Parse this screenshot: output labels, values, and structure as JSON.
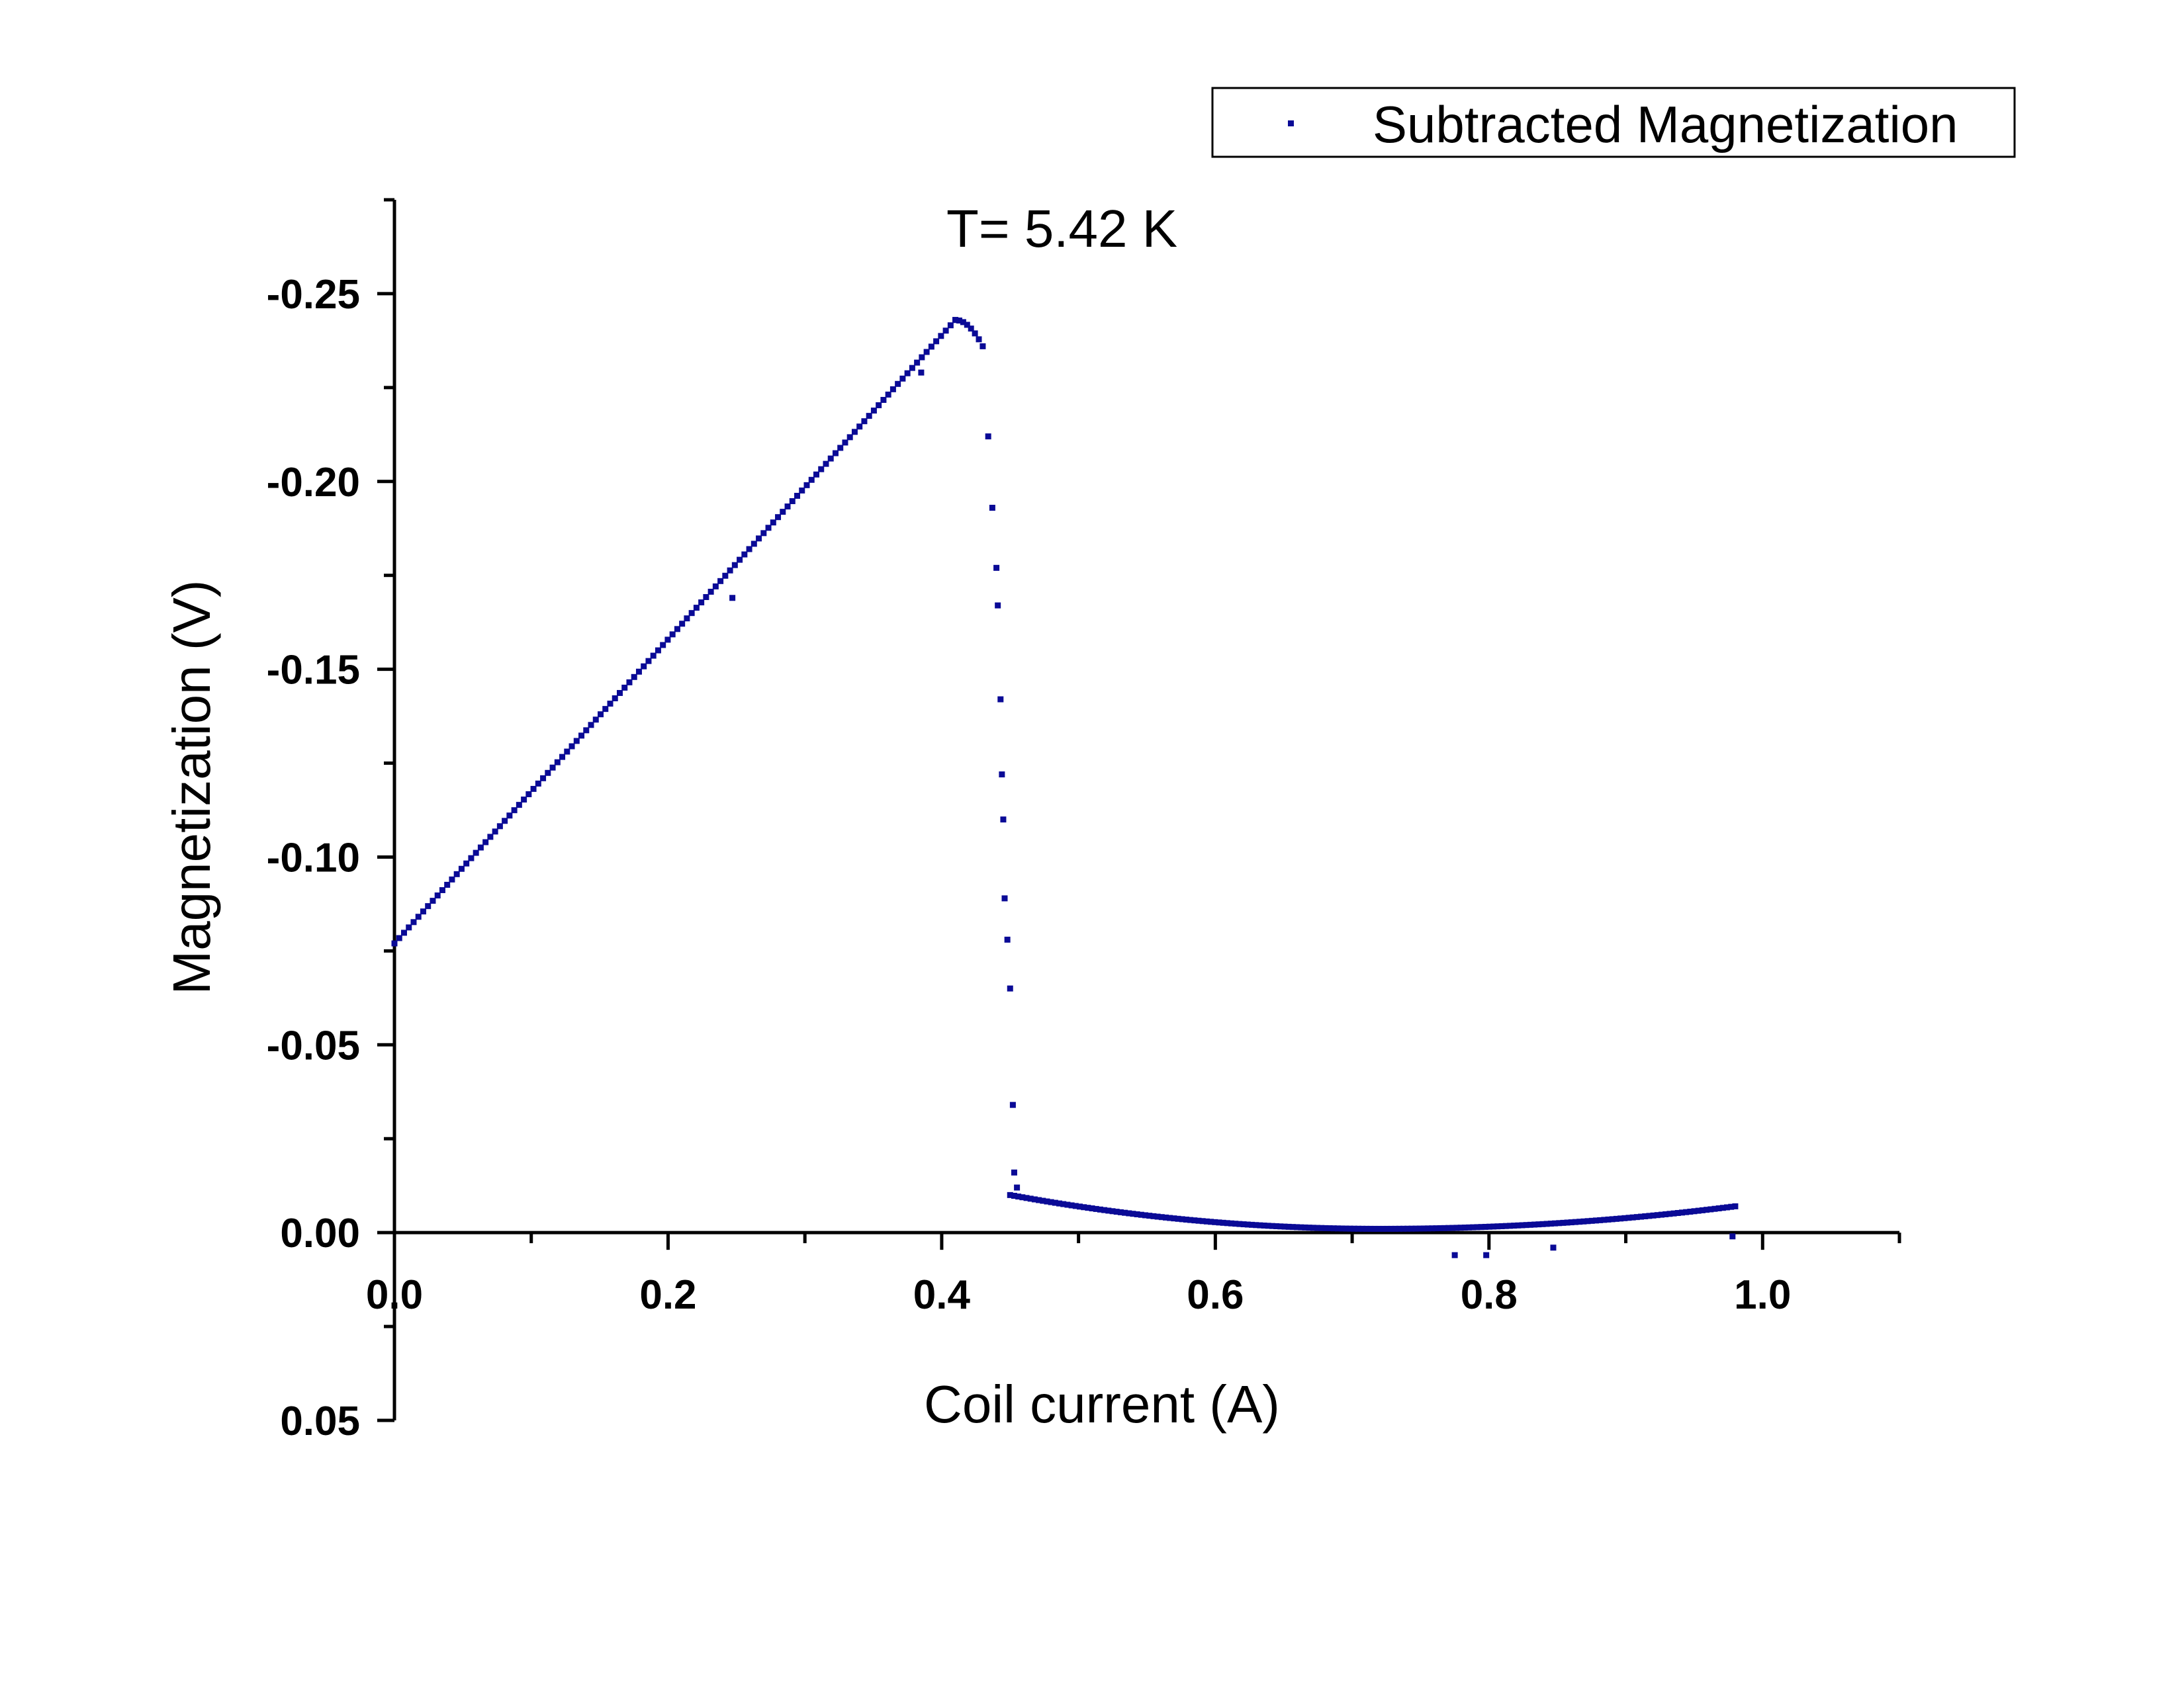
{
  "chart_data": {
    "type": "scatter",
    "title": "",
    "annotation": "T= 5.42 K",
    "xlabel": "Coil current (A)",
    "ylabel": "Magnetization (V)",
    "xlim": [
      0.0,
      1.1
    ],
    "ylim": [
      0.05,
      -0.275
    ],
    "y_reversed": true,
    "x_ticks": [
      "0.0",
      "0.2",
      "0.4",
      "0.6",
      "0.8",
      "1.0"
    ],
    "x_tick_values": [
      0.0,
      0.2,
      0.4,
      0.6,
      0.8,
      1.0
    ],
    "y_ticks": [
      "0.05",
      "0.00",
      "-0.05",
      "-0.10",
      "-0.15",
      "-0.20",
      "-0.25"
    ],
    "y_tick_values": [
      0.05,
      0.0,
      -0.05,
      -0.1,
      -0.15,
      -0.2,
      -0.25
    ],
    "grid": false,
    "legend_position": "top-right",
    "marker_color": "#0A0A96",
    "series": [
      {
        "name": "Subtracted Magnetization",
        "segments": [
          {
            "x_start": 0.0,
            "x_end": 0.41,
            "y_start": -0.077,
            "y_end": -0.243,
            "step": 0.0035
          },
          {
            "x_start": 0.41,
            "x_end": 0.43,
            "y_start": -0.243,
            "y_end": -0.236,
            "step": 0.003
          },
          {
            "x_start": 0.45,
            "x_end": 0.98,
            "y_start": -0.01,
            "y_end": -0.007,
            "step": 0.003
          }
        ],
        "points": [
          [
            0.434,
            -0.212
          ],
          [
            0.437,
            -0.193
          ],
          [
            0.44,
            -0.177
          ],
          [
            0.441,
            -0.167
          ],
          [
            0.443,
            -0.142
          ],
          [
            0.444,
            -0.122
          ],
          [
            0.445,
            -0.11
          ],
          [
            0.446,
            -0.089
          ],
          [
            0.448,
            -0.078
          ],
          [
            0.45,
            -0.065
          ],
          [
            0.452,
            -0.034
          ],
          [
            0.453,
            -0.016
          ],
          [
            0.455,
            -0.012
          ],
          [
            0.385,
            -0.229
          ],
          [
            0.247,
            -0.169
          ],
          [
            0.775,
            0.006
          ],
          [
            0.798,
            0.006
          ],
          [
            0.847,
            0.004
          ],
          [
            0.978,
            0.001
          ]
        ],
        "tail_dip_x": 0.72,
        "tail_dip_y": -0.001
      }
    ]
  }
}
